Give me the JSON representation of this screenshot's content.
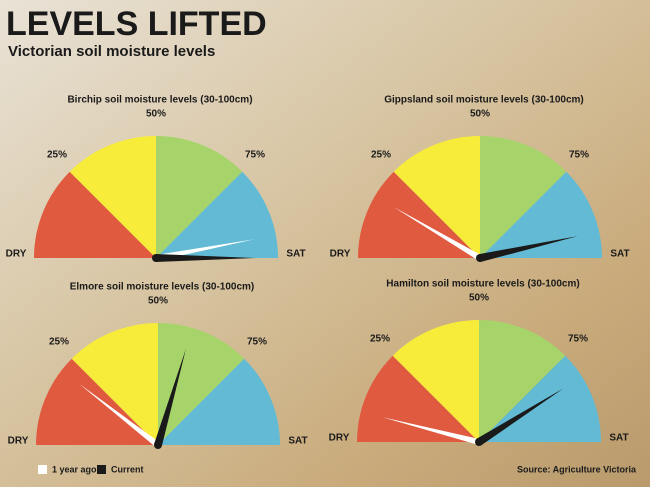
{
  "header": {
    "title": "LEVELS LIFTED",
    "subtitle": "Victorian soil moisture levels"
  },
  "source": "Source: Agriculture Victoria",
  "chart_data": [
    {
      "type": "gauge",
      "title": "Birchip soil moisture levels (30-100cm)",
      "ylim": [
        0,
        100
      ],
      "yticks": [
        {
          "value": 0,
          "label": "DRY"
        },
        {
          "value": 25,
          "label": "25%"
        },
        {
          "value": 50,
          "label": "50%"
        },
        {
          "value": 75,
          "label": "75%"
        },
        {
          "value": 100,
          "label": "SAT"
        }
      ],
      "band_colors": [
        "#e05a40",
        "#f8ec3a",
        "#a6d46a",
        "#62bad4"
      ],
      "series": [
        {
          "name": "1 year ago",
          "color": "#ffffff",
          "values": [
            94
          ]
        },
        {
          "name": "Current",
          "color": "#1a1a1a",
          "values": [
            100
          ]
        }
      ]
    },
    {
      "type": "gauge",
      "title": "Gippsland soil moisture levels (30-100cm)",
      "ylim": [
        0,
        100
      ],
      "yticks": [
        {
          "value": 0,
          "label": "DRY"
        },
        {
          "value": 25,
          "label": "25%"
        },
        {
          "value": 50,
          "label": "50%"
        },
        {
          "value": 75,
          "label": "75%"
        },
        {
          "value": 100,
          "label": "SAT"
        }
      ],
      "band_colors": [
        "#e05a40",
        "#f8ec3a",
        "#a6d46a",
        "#62bad4"
      ],
      "series": [
        {
          "name": "1 year ago",
          "color": "#ffffff",
          "values": [
            17
          ]
        },
        {
          "name": "Current",
          "color": "#1a1a1a",
          "values": [
            93
          ]
        }
      ]
    },
    {
      "type": "gauge",
      "title": "Elmore soil moisture levels (30-100cm)",
      "ylim": [
        0,
        100
      ],
      "yticks": [
        {
          "value": 0,
          "label": "DRY"
        },
        {
          "value": 25,
          "label": "25%"
        },
        {
          "value": 50,
          "label": "50%"
        },
        {
          "value": 75,
          "label": "75%"
        },
        {
          "value": 100,
          "label": "SAT"
        }
      ],
      "band_colors": [
        "#e05a40",
        "#f8ec3a",
        "#a6d46a",
        "#62bad4"
      ],
      "series": [
        {
          "name": "1 year ago",
          "color": "#ffffff",
          "values": [
            21
          ]
        },
        {
          "name": "Current",
          "color": "#1a1a1a",
          "values": [
            59
          ]
        }
      ]
    },
    {
      "type": "gauge",
      "title": "Hamilton soil moisture levels (30-100cm)",
      "ylim": [
        0,
        100
      ],
      "yticks": [
        {
          "value": 0,
          "label": "DRY"
        },
        {
          "value": 25,
          "label": "25%"
        },
        {
          "value": 50,
          "label": "50%"
        },
        {
          "value": 75,
          "label": "75%"
        },
        {
          "value": 100,
          "label": "SAT"
        }
      ],
      "band_colors": [
        "#e05a40",
        "#f8ec3a",
        "#a6d46a",
        "#62bad4"
      ],
      "series": [
        {
          "name": "1 year ago",
          "color": "#ffffff",
          "values": [
            8
          ]
        },
        {
          "name": "Current",
          "color": "#1a1a1a",
          "values": [
            82
          ]
        }
      ]
    }
  ]
}
